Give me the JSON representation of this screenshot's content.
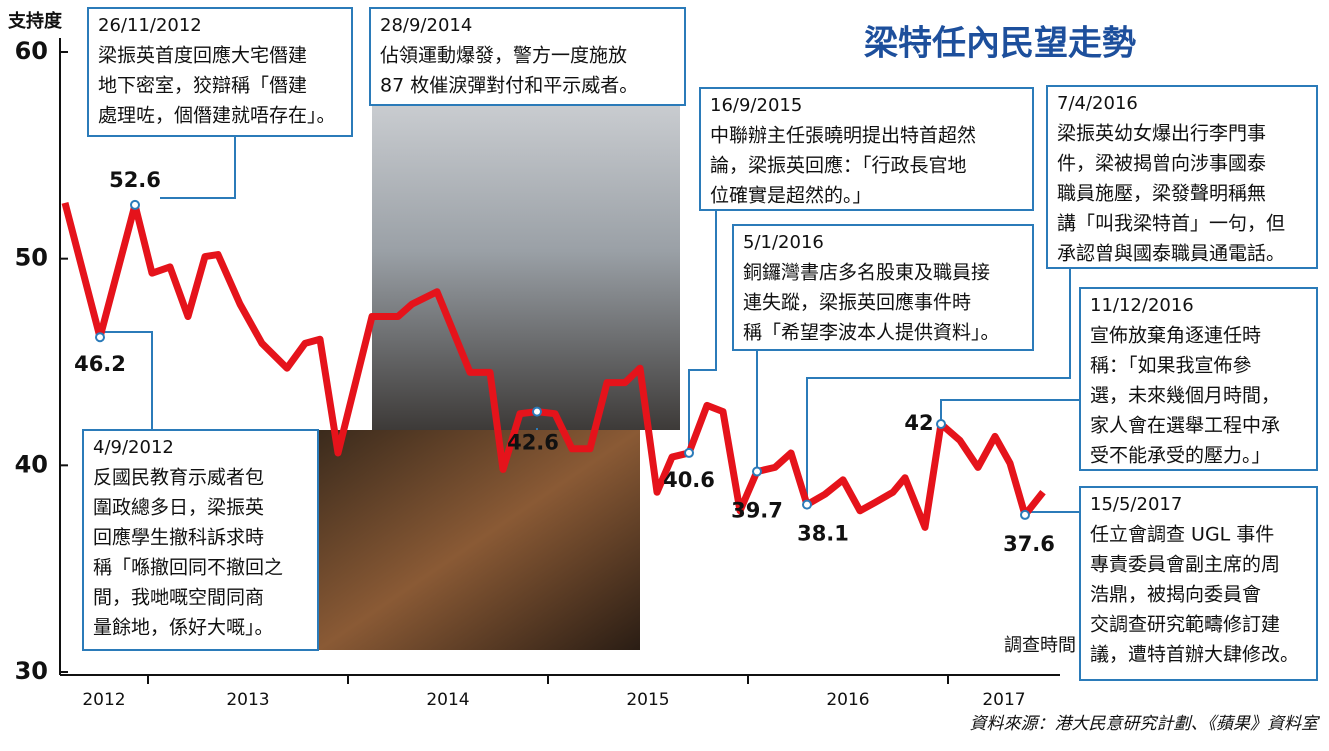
{
  "chart_data": {
    "type": "line",
    "title": "梁特任內民望走勢",
    "y_label": "支持度",
    "x_label": "調查時間",
    "source": "資料來源：港大民意研究計劃、《蘋果》資料室",
    "xlim": [
      2012.56,
      2017.56
    ],
    "xticks": [
      2013,
      2014,
      2015,
      2016,
      2017
    ],
    "year_labels": [
      "2012",
      "2013",
      "2014",
      "2015",
      "2016",
      "2017"
    ],
    "ylim": [
      30,
      60
    ],
    "yticks": [
      30,
      40,
      50,
      60
    ],
    "series": [
      {
        "color": "#e5131b",
        "x": [
          2012.585,
          2012.76,
          2012.935,
          2013.02,
          2013.11,
          2013.2,
          2013.285,
          2013.35,
          2013.46,
          2013.57,
          2013.695,
          2013.785,
          2013.86,
          2013.95,
          2014.12,
          2014.25,
          2014.32,
          2014.445,
          2014.61,
          2014.71,
          2014.775,
          2014.86,
          2014.945,
          2015.035,
          2015.12,
          2015.21,
          2015.295,
          2015.385,
          2015.46,
          2015.545,
          2015.62,
          2015.705,
          2015.795,
          2015.875,
          2015.96,
          2016.045,
          2016.135,
          2016.215,
          2016.295,
          2016.385,
          2016.475,
          2016.56,
          2016.635,
          2016.725,
          2016.785,
          2016.885,
          2016.965,
          2017.06,
          2017.15,
          2017.235,
          2017.31,
          2017.385,
          2017.475
        ],
        "values": [
          52.7,
          46.2,
          52.6,
          49.3,
          49.6,
          47.2,
          50.1,
          50.2,
          47.8,
          45.9,
          44.7,
          45.9,
          46.1,
          40.6,
          47.2,
          47.2,
          47.8,
          48.4,
          44.5,
          44.5,
          39.8,
          42.5,
          42.6,
          42.5,
          40.8,
          40.8,
          44.0,
          44.0,
          44.7,
          38.7,
          40.4,
          40.6,
          42.9,
          42.6,
          37.8,
          39.7,
          39.9,
          40.6,
          38.1,
          38.6,
          39.3,
          37.8,
          38.2,
          38.7,
          39.4,
          37.0,
          42,
          41.2,
          39.9,
          41.4,
          40.1,
          37.6,
          38.7
        ],
        "value_labels": [
          null,
          "46.2",
          "52.6",
          null,
          null,
          null,
          null,
          null,
          null,
          null,
          null,
          null,
          null,
          null,
          null,
          null,
          null,
          null,
          null,
          null,
          null,
          null,
          "42.6",
          null,
          null,
          null,
          null,
          null,
          null,
          null,
          null,
          "40.6",
          null,
          null,
          null,
          "39.7",
          null,
          null,
          "38.1",
          null,
          null,
          null,
          null,
          null,
          null,
          null,
          "42",
          null,
          null,
          null,
          null,
          "37.6",
          null
        ]
      }
    ],
    "annotations": [
      {
        "date": "26/11/2012",
        "lines": [
          "梁振英首度回應大宅僭建",
          "地下密室，狡辯稱「僭建",
          "處理咗，個僭建就唔存在」。"
        ]
      },
      {
        "date": "28/9/2014",
        "lines": [
          "佔領運動爆發，警方一度施放",
          "87 枚催淚彈對付和平示威者。"
        ]
      },
      {
        "date": "16/9/2015",
        "lines": [
          "中聯辦主任張曉明提出特首超然",
          "論，梁振英回應：「行政長官地",
          "位確實是超然的。」"
        ]
      },
      {
        "date": "5/1/2016",
        "lines": [
          "銅鑼灣書店多名股東及職員接",
          "連失蹤，梁振英回應事件時",
          "稱「希望李波本人提供資料」。"
        ]
      },
      {
        "date": "7/4/2016",
        "lines": [
          "梁振英幼女爆出行李門事",
          "件，梁被揭曾向涉事國泰",
          "職員施壓，梁發聲明稱無",
          "講「叫我梁特首」一句，但",
          "承認曾與國泰職員通電話。"
        ]
      },
      {
        "date": "11/12/2016",
        "lines": [
          "宣佈放棄角逐連任時",
          "稱：「如果我宣佈參",
          "選，未來幾個月時間，",
          "家人會在選舉工程中承",
          "受不能承受的壓力。」"
        ]
      },
      {
        "date": "15/5/2017",
        "lines": [
          "任立會調查 UGL 事件",
          "專責委員會副主席的周",
          "浩鼎，被揭向委員會",
          "交調查研究範疇修訂建",
          "議，遭特首辦大肆修改。"
        ]
      },
      {
        "date": "4/9/2012",
        "lines": [
          "反國民教育示威者包",
          "圍政總多日，梁振英",
          "回應學生撤科訴求時",
          "稱「喺撤回同不撤回之",
          "間，我哋嘅空間同商",
          "量餘地，係好大嘅」。"
        ]
      }
    ]
  }
}
